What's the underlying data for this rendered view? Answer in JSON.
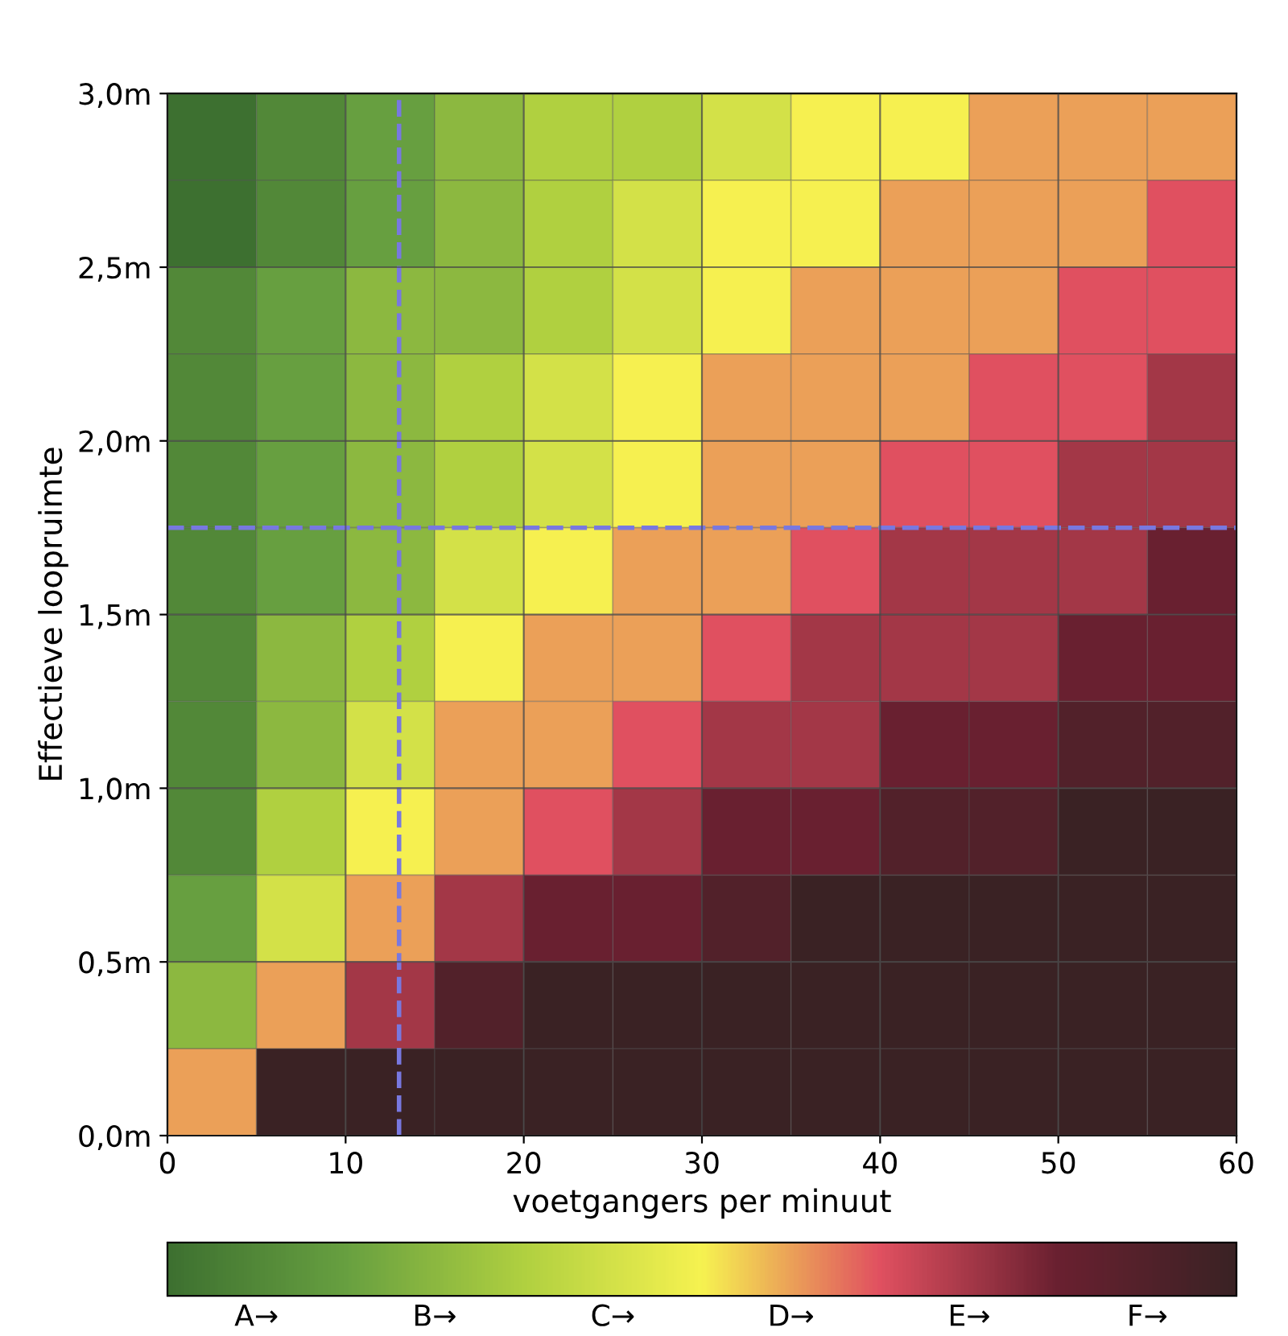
{
  "chart_data": {
    "type": "heatmap",
    "xlabel": "voetgangers per minuut",
    "ylabel": "Effectieve loopruimte",
    "x": [
      2.5,
      7.5,
      12.5,
      17.5,
      22.5,
      27.5,
      32.5,
      37.5,
      42.5,
      47.5,
      52.5,
      57.5
    ],
    "y": [
      2.875,
      2.625,
      2.375,
      2.125,
      1.875,
      1.625,
      1.375,
      1.125,
      0.875,
      0.625,
      0.375,
      0.125
    ],
    "cells": [
      [
        0,
        0.5,
        1,
        1.5,
        2,
        2,
        2.5,
        3,
        3,
        3.5,
        3.5,
        3.5
      ],
      [
        0,
        0.5,
        1,
        1.5,
        2,
        2.5,
        3,
        3,
        3.5,
        3.5,
        3.5,
        4
      ],
      [
        0.5,
        1,
        1.5,
        1.5,
        2,
        2.5,
        3,
        3.5,
        3.5,
        3.5,
        4,
        4
      ],
      [
        0.5,
        1,
        1.5,
        2,
        2.5,
        3,
        3.5,
        3.5,
        3.5,
        4,
        4,
        4.5
      ],
      [
        0.5,
        1,
        1.5,
        2,
        2.5,
        3,
        3.5,
        3.5,
        4,
        4,
        4.5,
        4.5
      ],
      [
        0.5,
        1,
        1.5,
        2.5,
        3,
        3.5,
        3.5,
        4,
        4.5,
        4.5,
        4.5,
        5
      ],
      [
        0.5,
        1.5,
        2,
        3,
        3.5,
        3.5,
        4,
        4.5,
        4.5,
        4.5,
        5,
        5
      ],
      [
        0.5,
        1.5,
        2.5,
        3.5,
        3.5,
        4,
        4.5,
        4.5,
        5,
        5,
        5.5,
        5.5
      ],
      [
        0.5,
        2,
        3,
        3.5,
        4,
        4.5,
        5,
        5,
        5.5,
        5.5,
        6,
        6
      ],
      [
        1,
        2.5,
        3.5,
        4.5,
        5,
        5,
        5.5,
        6,
        6,
        6,
        6,
        6
      ],
      [
        1.5,
        3.5,
        4.5,
        5.5,
        6,
        6,
        6,
        6,
        6,
        6,
        6,
        6
      ],
      [
        3.5,
        6,
        6,
        6,
        6,
        6,
        6,
        6,
        6,
        6,
        6,
        6
      ]
    ],
    "xlim": [
      0,
      60
    ],
    "xticks": [
      0,
      10,
      20,
      30,
      40,
      50,
      60
    ],
    "ylim": [
      0,
      3
    ],
    "yticks": [
      {
        "value": 0,
        "label": "0,0m"
      },
      {
        "value": 0.5,
        "label": "0,5m"
      },
      {
        "value": 1,
        "label": "1,0m"
      },
      {
        "value": 1.5,
        "label": "1,5m"
      },
      {
        "value": 2,
        "label": "2,0m"
      },
      {
        "value": 2.5,
        "label": "2,5m"
      },
      {
        "value": 3,
        "label": "3,0m"
      }
    ],
    "clim": [
      0,
      6
    ],
    "cticks": [
      {
        "value": 0.5,
        "label": "A→"
      },
      {
        "value": 1.5,
        "label": "B→"
      },
      {
        "value": 2.5,
        "label": "C→"
      },
      {
        "value": 3.5,
        "label": "D→"
      },
      {
        "value": 4.5,
        "label": "E→"
      },
      {
        "value": 5.5,
        "label": "F→"
      }
    ],
    "ref_lines": [
      {
        "axis": "x",
        "value": 13,
        "color": "#7878e0",
        "line_style": "dashed"
      },
      {
        "axis": "y",
        "value": 1.75,
        "color": "#7878e0",
        "line_style": "dashed"
      }
    ],
    "grid": true
  }
}
